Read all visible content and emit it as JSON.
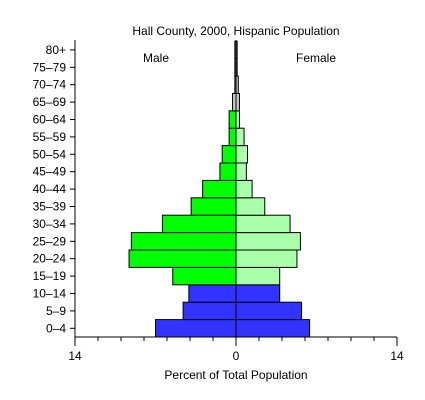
{
  "chart_data": {
    "type": "bar",
    "subtype": "population-pyramid",
    "title": "Hall County, 2000, Hispanic Population",
    "xlabel": "Percent of Total Population",
    "ylabel": "",
    "xlim": [
      -14,
      14
    ],
    "x_tick_labels": [
      "14",
      "0",
      "14"
    ],
    "x_ticks": [
      -14,
      0,
      14
    ],
    "side_labels": {
      "left": "Male",
      "right": "Female"
    },
    "categories": [
      "0–4",
      "5–9",
      "10–14",
      "15–19",
      "20–24",
      "25–29",
      "30–34",
      "35–39",
      "40–44",
      "45–49",
      "50–54",
      "55–59",
      "60–64",
      "65–69",
      "70–74",
      "75–79",
      "80+"
    ],
    "series": [
      {
        "name": "Male",
        "values": [
          7.0,
          4.6,
          4.1,
          5.5,
          9.3,
          9.1,
          6.4,
          3.9,
          2.9,
          1.4,
          1.2,
          0.6,
          0.6,
          0.3,
          0.1,
          0.1,
          0.1
        ]
      },
      {
        "name": "Female",
        "values": [
          6.4,
          5.7,
          3.8,
          3.8,
          5.3,
          5.6,
          4.7,
          2.5,
          1.4,
          0.9,
          1.0,
          0.7,
          0.3,
          0.3,
          0.2,
          0.1,
          0.1
        ]
      }
    ],
    "colors": {
      "0–14": "#3333ff",
      "15–64 male": "#00ff00",
      "15–64 female": "#aaffaa",
      "65+": "#c8c8c8",
      "outline": "#000000"
    },
    "grid": false,
    "legend": "none"
  }
}
